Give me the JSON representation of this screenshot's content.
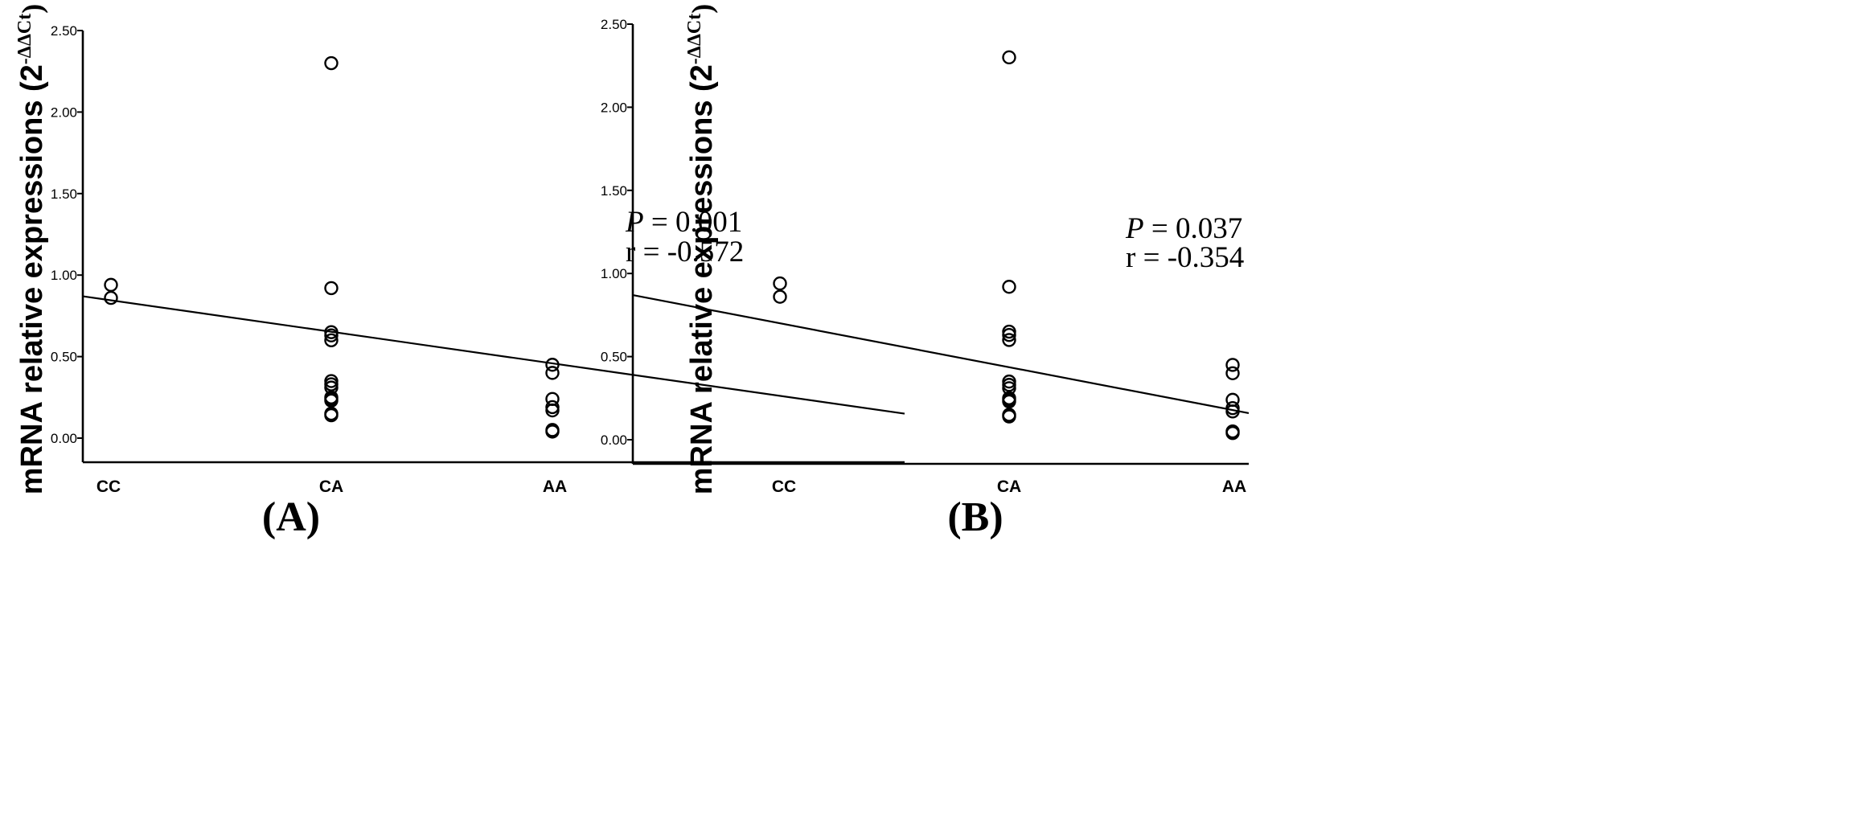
{
  "chart_data": [
    {
      "type": "scatter",
      "panel_label": "A",
      "y_label_main": "mRNA relative expressions (2",
      "y_label_sup": "-ΔΔCt",
      "y_label_close": ")",
      "categories": [
        "CC",
        "CA",
        "AA"
      ],
      "y_ticks": [
        "0.00",
        "0.50",
        "1.00",
        "1.50",
        "2.00",
        "2.50"
      ],
      "ylim": [
        0,
        2.5
      ],
      "annotation": {
        "p_symbol": "P",
        "p_value": " = 0.001",
        "r_text": "r = -0.572"
      },
      "points": [
        {
          "x": "CC",
          "y": 0.94
        },
        {
          "x": "CC",
          "y": 0.86
        },
        {
          "x": "CA",
          "y": 2.3
        },
        {
          "x": "CA",
          "y": 0.92
        },
        {
          "x": "CA",
          "y": 0.65
        },
        {
          "x": "CA",
          "y": 0.63
        },
        {
          "x": "CA",
          "y": 0.6
        },
        {
          "x": "CA",
          "y": 0.35
        },
        {
          "x": "CA",
          "y": 0.33
        },
        {
          "x": "CA",
          "y": 0.31
        },
        {
          "x": "CA",
          "y": 0.25
        },
        {
          "x": "CA",
          "y": 0.24
        },
        {
          "x": "CA",
          "y": 0.23
        },
        {
          "x": "CA",
          "y": 0.15
        },
        {
          "x": "CA",
          "y": 0.14
        },
        {
          "x": "AA",
          "y": 0.45
        },
        {
          "x": "AA",
          "y": 0.4
        },
        {
          "x": "AA",
          "y": 0.24
        },
        {
          "x": "AA",
          "y": 0.19
        },
        {
          "x": "AA",
          "y": 0.17
        },
        {
          "x": "AA",
          "y": 0.05
        },
        {
          "x": "AA",
          "y": 0.04
        }
      ],
      "fit_line": {
        "y_start": 0.87,
        "y_end": 0.15
      }
    },
    {
      "type": "scatter",
      "panel_label": "B",
      "y_label_main": "mRNA relative expressions (2",
      "y_label_sup": "-ΔΔCt",
      "y_label_close": ")",
      "categories": [
        "CC",
        "CA",
        "AA"
      ],
      "y_ticks": [
        "0.00",
        "0.50",
        "1.00",
        "1.50",
        "2.00",
        "2.50"
      ],
      "ylim": [
        0,
        2.5
      ],
      "annotation": {
        "p_symbol": "P",
        "p_value": " = 0.037",
        "r_text": "r = -0.354"
      },
      "points": [
        {
          "x": "CC",
          "y": 0.94
        },
        {
          "x": "CC",
          "y": 0.86
        },
        {
          "x": "CA",
          "y": 2.3
        },
        {
          "x": "CA",
          "y": 0.92
        },
        {
          "x": "CA",
          "y": 0.65
        },
        {
          "x": "CA",
          "y": 0.63
        },
        {
          "x": "CA",
          "y": 0.6
        },
        {
          "x": "CA",
          "y": 0.35
        },
        {
          "x": "CA",
          "y": 0.33
        },
        {
          "x": "CA",
          "y": 0.31
        },
        {
          "x": "CA",
          "y": 0.25
        },
        {
          "x": "CA",
          "y": 0.24
        },
        {
          "x": "CA",
          "y": 0.23
        },
        {
          "x": "CA",
          "y": 0.15
        },
        {
          "x": "CA",
          "y": 0.14
        },
        {
          "x": "AA",
          "y": 0.45
        },
        {
          "x": "AA",
          "y": 0.4
        },
        {
          "x": "AA",
          "y": 0.24
        },
        {
          "x": "AA",
          "y": 0.19
        },
        {
          "x": "AA",
          "y": 0.17
        },
        {
          "x": "AA",
          "y": 0.05
        },
        {
          "x": "AA",
          "y": 0.04
        }
      ],
      "fit_line": {
        "y_start": 0.87,
        "y_end": 0.16
      }
    }
  ]
}
